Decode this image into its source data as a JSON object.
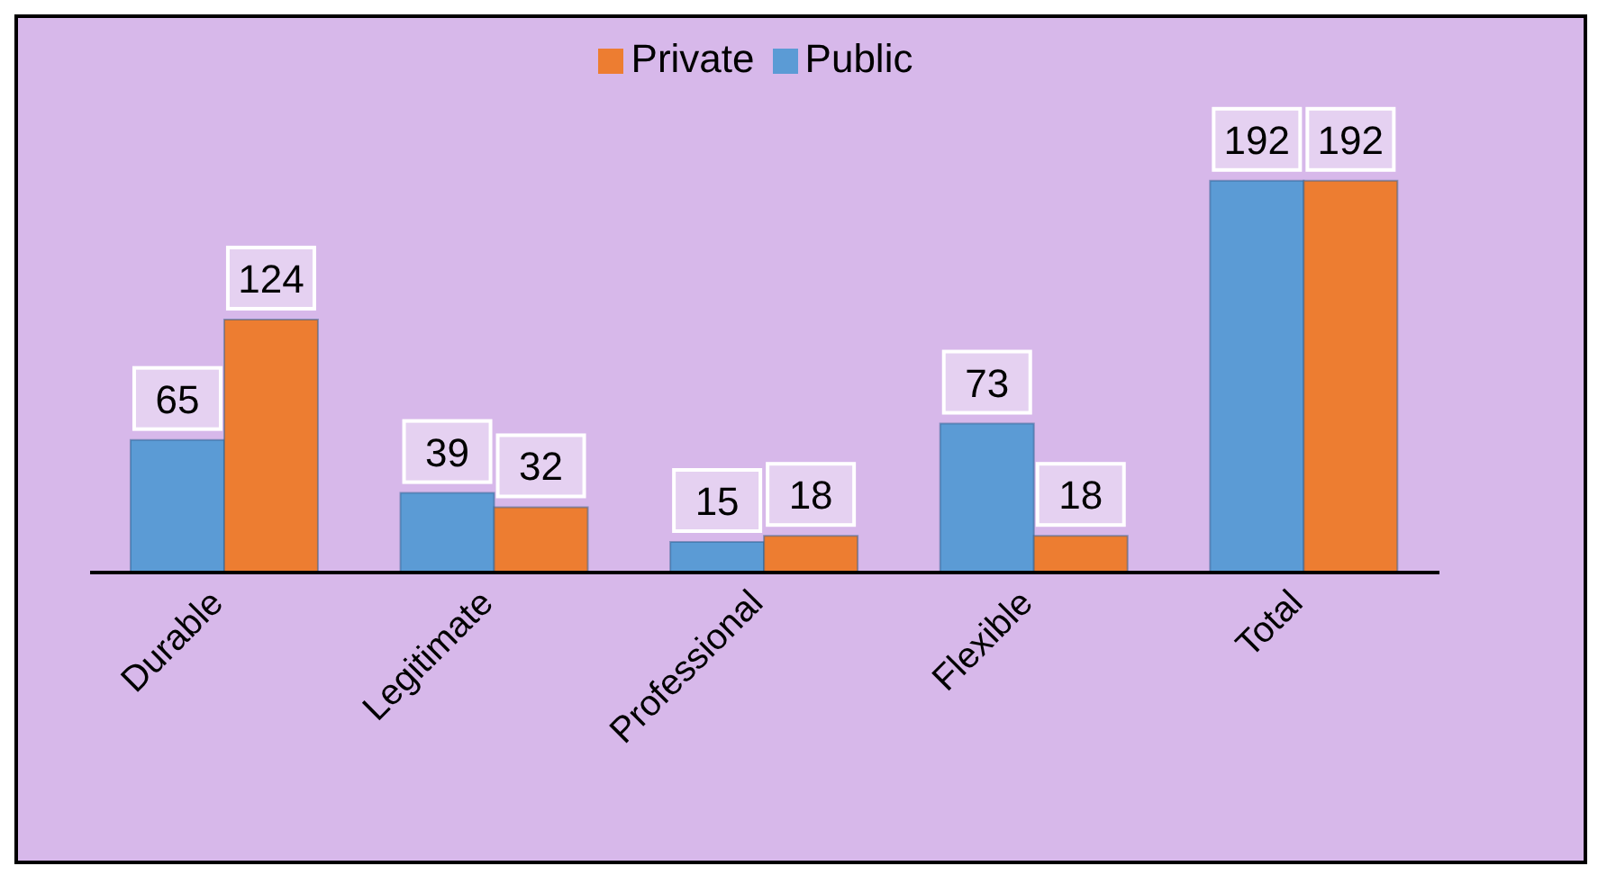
{
  "chart_data": {
    "type": "bar",
    "categories": [
      "Durable",
      "Legitimate",
      "Professional",
      "Flexible",
      "Total"
    ],
    "series": [
      {
        "name": "Public",
        "color": "#5b9bd5",
        "values": [
          65,
          39,
          15,
          73,
          192
        ]
      },
      {
        "name": "Private",
        "color": "#ed7d31",
        "values": [
          124,
          32,
          18,
          18,
          192
        ]
      }
    ],
    "data_labels": true,
    "legend": "top",
    "grid": false
  }
}
